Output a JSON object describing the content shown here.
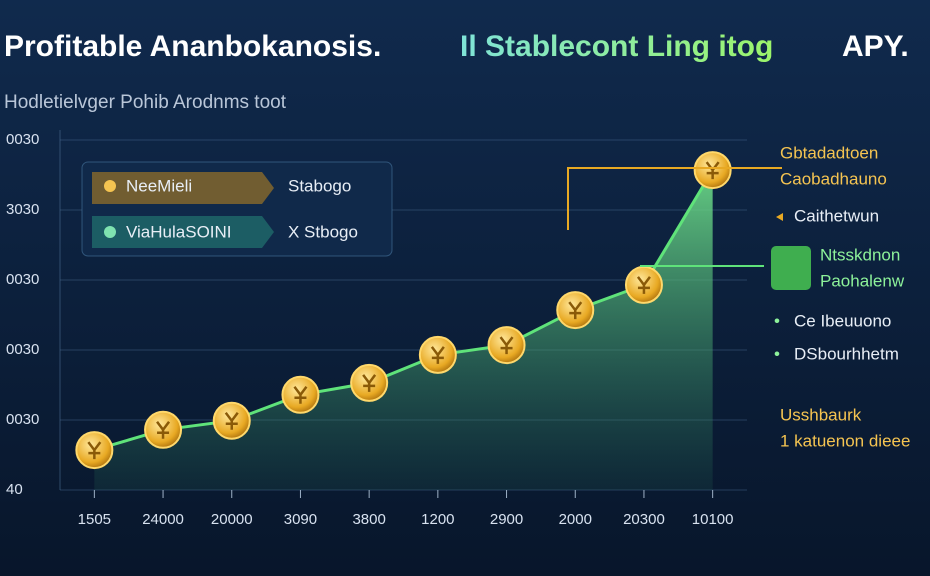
{
  "chart_data": {
    "type": "area",
    "title": "Profitable Ananbokanosis.",
    "title_highlight": "Il Stablecont Ling itog",
    "title_end": "APY.",
    "subtitle": "Hodletielvger Pohib Arodnms toot",
    "categories": [
      "1505",
      "24000",
      "20000",
      "3090",
      "3800",
      "1200",
      "2900",
      "2000",
      "20300",
      "10100"
    ],
    "series": [
      {
        "color": "#5fe37a",
        "values": [
          0.57,
          0.86,
          0.99,
          1.36,
          1.53,
          1.93,
          2.07,
          2.57,
          2.93,
          4.57
        ]
      }
    ],
    "ylim": [
      0,
      5
    ],
    "yticks": [
      {
        "value": 0,
        "label": "40"
      },
      {
        "value": 1,
        "label": "0030"
      },
      {
        "value": 2,
        "label": "0030"
      },
      {
        "value": 3,
        "label": "0030"
      },
      {
        "value": 4,
        "label": "3030"
      },
      {
        "value": 5,
        "label": "0030"
      }
    ],
    "grid": true,
    "legend_box": [
      {
        "label": "NeeMieli",
        "value_text": "Stabogo"
      },
      {
        "label": "ViaHulaSOINI",
        "value_text": "X Stbogo"
      }
    ],
    "annotations": {
      "top_right": [
        "Gbtadadtoen",
        "Caobadhauno"
      ],
      "pointer": "Caithetwun",
      "highlight": [
        "Ntsskdnon",
        "Paohalenw"
      ],
      "bullets": [
        "Ce Ibeuuono",
        "DSbourhhetm"
      ],
      "footer": [
        "Usshbaurk",
        "1 katuenon dieee"
      ]
    }
  }
}
